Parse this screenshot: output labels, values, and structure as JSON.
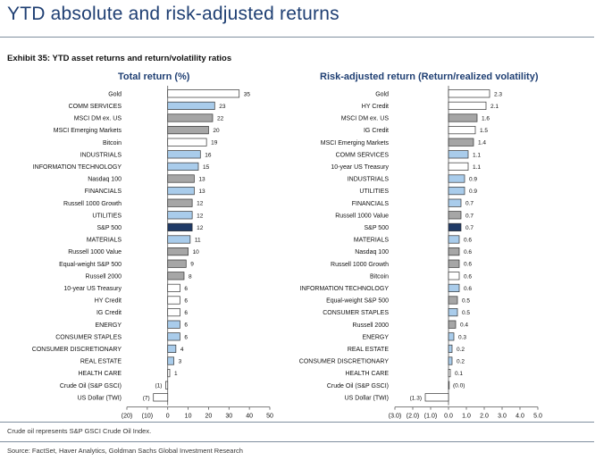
{
  "header": {
    "title": "YTD absolute and risk-adjusted returns",
    "exhibit": "Exhibit 35: YTD asset returns and return/volatility ratios"
  },
  "footer": {
    "note": "Crude oil represents S&P GSCI Crude Oil Index.",
    "source": "Source: FactSet, Haver Analytics, Goldman Sachs Global Investment Research"
  },
  "colors": {
    "white": "#ffffff",
    "light_blue": "#a9cceb",
    "grey": "#a6a6a6",
    "navy": "#1f3a66"
  },
  "chart_data": [
    {
      "type": "bar",
      "orientation": "horizontal",
      "title": "Total return (%)",
      "xlim": [
        -20,
        50
      ],
      "ticks": [
        -20,
        -10,
        0,
        10,
        20,
        30,
        40,
        50
      ],
      "tick_labels": [
        "(20)",
        "(10)",
        "0",
        "10",
        "20",
        "30",
        "40",
        "50"
      ],
      "categories": [
        "Gold",
        "COMM SERVICES",
        "MSCI DM ex. US",
        "MSCI Emerging Markets",
        "Bitcoin",
        "INDUSTRIALS",
        "INFORMATION TECHNOLOGY",
        "Nasdaq 100",
        "FINANCIALS",
        "Russell 1000 Growth",
        "UTILITIES",
        "S&P 500",
        "MATERIALS",
        "Russell 1000 Value",
        "Equal-weight S&P 500",
        "Russell 2000",
        "10-year US Treasury",
        "HY Credit",
        "IG Credit",
        "ENERGY",
        "CONSUMER STAPLES",
        "CONSUMER DISCRETIONARY",
        "REAL ESTATE",
        "HEALTH CARE",
        "Crude Oil (S&P GSCI)",
        "US Dollar (TWI)"
      ],
      "values": [
        35,
        23,
        22,
        20,
        19,
        16,
        15,
        13,
        13,
        12,
        12,
        12,
        11,
        10,
        9,
        8,
        6,
        6,
        6,
        6,
        6,
        4,
        3,
        1,
        -1,
        -7
      ],
      "value_labels": [
        "35",
        "23",
        "22",
        "20",
        "19",
        "16",
        "15",
        "13",
        "13",
        "12",
        "12",
        "12",
        "11",
        "10",
        "9",
        "8",
        "6",
        "6",
        "6",
        "6",
        "6",
        "4",
        "3",
        "1",
        "(1)",
        "(7)"
      ],
      "colors": [
        "white",
        "light_blue",
        "grey",
        "grey",
        "white",
        "light_blue",
        "light_blue",
        "grey",
        "light_blue",
        "grey",
        "light_blue",
        "navy",
        "light_blue",
        "grey",
        "grey",
        "grey",
        "white",
        "white",
        "white",
        "light_blue",
        "light_blue",
        "light_blue",
        "light_blue",
        "white",
        "white",
        "white"
      ]
    },
    {
      "type": "bar",
      "orientation": "horizontal",
      "title": "Risk-adjusted return (Return/realized volatility)",
      "xlim": [
        -3,
        5
      ],
      "ticks": [
        -3,
        -2,
        -1,
        0,
        1,
        2,
        3,
        4,
        5
      ],
      "tick_labels": [
        "(3.0)",
        "(2.0)",
        "(1.0)",
        "0.0",
        "1.0",
        "2.0",
        "3.0",
        "4.0",
        "5.0"
      ],
      "categories": [
        "Gold",
        "HY Credit",
        "MSCI DM ex. US",
        "IG Credit",
        "MSCI Emerging Markets",
        "COMM SERVICES",
        "10-year US Treasury",
        "INDUSTRIALS",
        "UTILITIES",
        "FINANCIALS",
        "Russell 1000 Value",
        "S&P 500",
        "MATERIALS",
        "Nasdaq 100",
        "Russell 1000 Growth",
        "Bitcoin",
        "INFORMATION TECHNOLOGY",
        "Equal-weight S&P 500",
        "CONSUMER STAPLES",
        "Russell 2000",
        "ENERGY",
        "REAL ESTATE",
        "CONSUMER DISCRETIONARY",
        "HEALTH CARE",
        "Crude Oil (S&P GSCI)",
        "US Dollar (TWI)"
      ],
      "values": [
        2.3,
        2.1,
        1.6,
        1.5,
        1.4,
        1.1,
        1.1,
        0.9,
        0.9,
        0.7,
        0.7,
        0.7,
        0.6,
        0.6,
        0.6,
        0.6,
        0.6,
        0.5,
        0.5,
        0.4,
        0.3,
        0.2,
        0.2,
        0.1,
        0.0,
        -1.3
      ],
      "value_labels": [
        "2.3",
        "2.1",
        "1.6",
        "1.5",
        "1.4",
        "1.1",
        "1.1",
        "0.9",
        "0.9",
        "0.7",
        "0.7",
        "0.7",
        "0.6",
        "0.6",
        "0.6",
        "0.6",
        "0.6",
        "0.5",
        "0.5",
        "0.4",
        "0.3",
        "0.2",
        "0.2",
        "0.1",
        "(0.0)",
        "(1.3)"
      ],
      "colors": [
        "white",
        "white",
        "grey",
        "white",
        "grey",
        "light_blue",
        "white",
        "light_blue",
        "light_blue",
        "light_blue",
        "grey",
        "navy",
        "light_blue",
        "grey",
        "grey",
        "white",
        "light_blue",
        "grey",
        "light_blue",
        "grey",
        "light_blue",
        "light_blue",
        "light_blue",
        "white",
        "white",
        "white"
      ]
    }
  ]
}
